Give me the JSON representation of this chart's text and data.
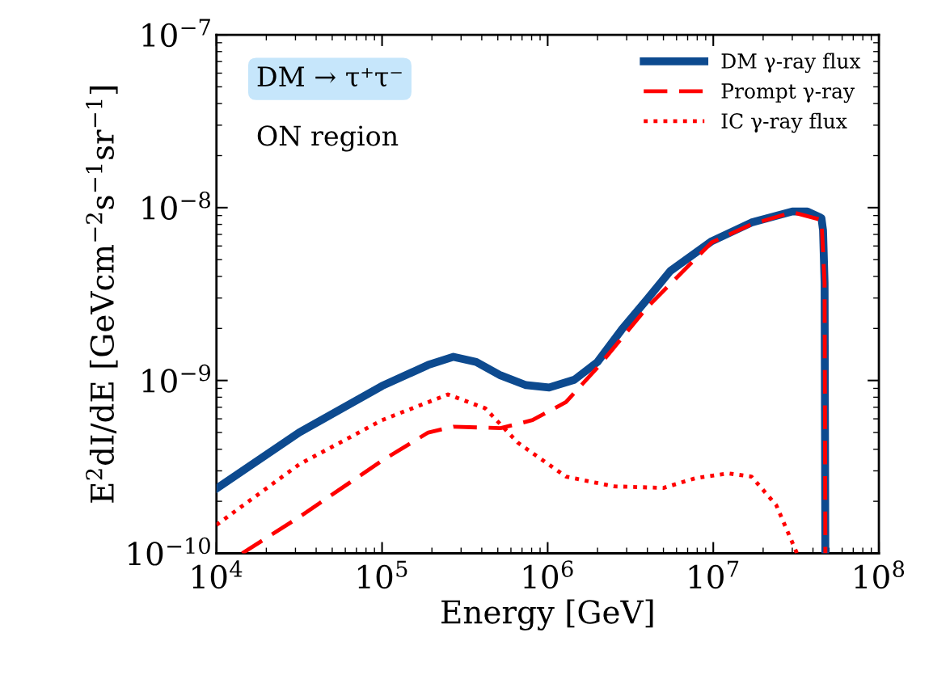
{
  "chart_data": {
    "type": "line",
    "xlabel": "Energy [GeV]",
    "ylabel": "E$^{2}$dI/dE [GeVcm$^{−2}$s$^{−1}$sr$^{−1}$]",
    "log": "xy",
    "xlim": [
      10000,
      100000000
    ],
    "ylim": [
      1e-10,
      1e-07
    ],
    "xticks": [
      {
        "value": 10000,
        "label": "10$^{4}$"
      },
      {
        "value": 100000,
        "label": "10$^{5}$"
      },
      {
        "value": 1000000,
        "label": "10$^{6}$"
      },
      {
        "value": 10000000,
        "label": "10$^{7}$"
      },
      {
        "value": 100000000,
        "label": "10$^{8}$"
      }
    ],
    "yticks": [
      {
        "value": 1e-10,
        "label": "10$^{−10}$"
      },
      {
        "value": 1e-09,
        "label": "10$^{−9}$"
      },
      {
        "value": 1e-08,
        "label": "10$^{−8}$"
      },
      {
        "value": 1e-07,
        "label": "10$^{−7}$"
      }
    ],
    "grid": false,
    "legend": "top right",
    "annotations": [
      "DM → τ⁺τ⁻",
      "ON region"
    ],
    "series": [
      {
        "name": "DM γ-ray flux",
        "color": "#0d4a8f",
        "line_style": "solid",
        "x": [
          10000,
          31600,
          100000,
          190000,
          270000,
          370000,
          520000,
          740000,
          1020000,
          1450000,
          2000000,
          2800000,
          4000000,
          5500000,
          9800000,
          17000000,
          30000000,
          37000000,
          45000000,
          46000000,
          47000000,
          47500000
        ],
        "values": [
          2.37e-10,
          5e-10,
          9.3e-10,
          1.23e-09,
          1.37e-09,
          1.28e-09,
          1.07e-09,
          9.4e-10,
          9.1e-10,
          1.01e-09,
          1.28e-09,
          1.97e-09,
          2.96e-09,
          4.3e-09,
          6.4e-09,
          8.2e-09,
          9.5e-09,
          9.5e-09,
          8.7e-09,
          7.4e-09,
          3.67e-09,
          1e-10
        ]
      },
      {
        "name": "Prompt γ-ray",
        "color": "#ff0000",
        "line_style": "dashed",
        "x": [
          14300,
          31600,
          100000,
          190000,
          270000,
          520000,
          810000,
          1290000,
          2000000,
          4000000,
          9800000,
          17000000,
          30000000,
          45000000,
          47000000,
          47500000
        ],
        "values": [
          1e-10,
          1.62e-10,
          3.44e-10,
          5e-10,
          5.4e-10,
          5.3e-10,
          5.9e-10,
          7.5e-10,
          1.19e-09,
          2.66e-09,
          6.3e-09,
          8e-09,
          9.4e-09,
          8.5e-09,
          3.67e-09,
          1e-10
        ]
      },
      {
        "name": "IC γ-ray flux",
        "color": "#ff0000",
        "line_style": "dotted",
        "x": [
          10000,
          31600,
          100000,
          250000,
          420000,
          660000,
          1290000,
          2500000,
          5000000,
          7800000,
          12300000,
          17000000,
          24000000,
          32000000
        ],
        "values": [
          1.46e-10,
          3.27e-10,
          5.9e-10,
          8.3e-10,
          6.9e-10,
          4.37e-10,
          2.78e-10,
          2.44e-10,
          2.39e-10,
          2.72e-10,
          2.9e-10,
          2.78e-10,
          1.9e-10,
          1e-10
        ]
      }
    ]
  }
}
